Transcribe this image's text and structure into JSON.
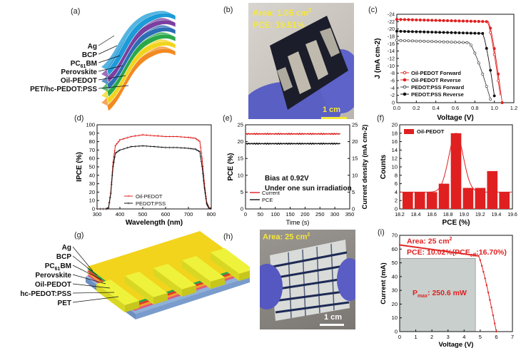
{
  "panels": {
    "a": {
      "label": "(a)",
      "layers": [
        "Ag",
        "BCP",
        "PC61BM",
        "Perovskite",
        "Oil-PEDOT",
        "PET/hc-PEDOT:PSS"
      ],
      "layer_colors": [
        "#1b9bd7",
        "#7b3fa0",
        "#2c6db5",
        "#2aa84a",
        "#f2d41c",
        "#f28a22"
      ]
    },
    "b": {
      "label": "(b)",
      "area": "Area: 1.05 cm",
      "area_sup": "2",
      "pce": "PCE: 19.51%",
      "scale": "1 cm"
    },
    "c": {
      "label": "(c)"
    },
    "d": {
      "label": "(d)"
    },
    "e": {
      "label": "(e)",
      "note1": "Bias at 0.92V",
      "note2": "Under one sun irradiation"
    },
    "f": {
      "label": "(f)"
    },
    "g": {
      "label": "(g)",
      "layers": [
        "Ag",
        "BCP",
        "PC61BM",
        "Perovskite",
        "Oil-PEDOT",
        "hc-PEDOT:PSS",
        "PET"
      ]
    },
    "h": {
      "label": "(h)",
      "area": "Area: 25 cm",
      "area_sup": "2",
      "scale": "1 cm"
    },
    "i": {
      "label": "(i)",
      "area": "Area: 25 cm",
      "area_sup": "2",
      "pce": "PCE: 10.02%(PCE",
      "pce_sub": "eff",
      "pce_tail": ":16.70%)",
      "pmax": "P",
      "pmax_sub": "max",
      "pmax_tail": ": 250.6 mW"
    }
  },
  "chart_data": [
    {
      "id": "c",
      "type": "line",
      "xlabel": "Voltage (V)",
      "ylabel": "J (mA cm-2)",
      "xlim": [
        0.0,
        1.2
      ],
      "ylim": [
        -24,
        0
      ],
      "y_inverted": true,
      "xticks": [
        "0.0",
        "0.2",
        "0.4",
        "0.6",
        "0.8",
        "1.0",
        "1.2"
      ],
      "yticks": [
        "-24",
        "-22",
        "-20",
        "-18",
        "-16",
        "-14",
        "-12",
        "-10",
        "-8",
        "-6",
        "-4",
        "-2",
        "0"
      ],
      "legend": "bottom-left",
      "series": [
        {
          "name": "Oil-PEDOT Forward",
          "color": "#e02020",
          "marker": "open-circle",
          "jsc": 22.6,
          "voc": 1.07,
          "knee": 0.93
        },
        {
          "name": "Oil-PEDOT Reverse",
          "color": "#e02020",
          "marker": "filled-circle",
          "jsc": 22.6,
          "voc": 1.08,
          "knee": 0.94
        },
        {
          "name": "PEDOT:PSS Forward",
          "color": "#444444",
          "marker": "open-circle",
          "jsc": 16.9,
          "voc": 0.97,
          "knee": 0.74
        },
        {
          "name": "PEDOT:PSS Reverse",
          "color": "#111111",
          "marker": "filled-circle",
          "jsc": 19.4,
          "voc": 1.01,
          "knee": 0.88
        }
      ]
    },
    {
      "id": "d",
      "type": "line",
      "xlabel": "Wavelength (nm)",
      "ylabel": "IPCE (%)",
      "xlim": [
        300,
        800
      ],
      "ylim": [
        0,
        100
      ],
      "xticks": [
        "300",
        "400",
        "500",
        "600",
        "700",
        "800"
      ],
      "yticks": [
        "0",
        "10",
        "20",
        "30",
        "40",
        "50",
        "60",
        "70",
        "80",
        "90",
        "100"
      ],
      "legend": "bottom-center",
      "x": [
        300,
        340,
        350,
        360,
        370,
        380,
        400,
        450,
        500,
        550,
        600,
        650,
        700,
        730,
        750,
        760,
        770,
        780,
        790,
        800
      ],
      "series": [
        {
          "name": "Oil-PEDOT",
          "color": "#e02020",
          "values": [
            0,
            0,
            1,
            20,
            55,
            75,
            82,
            86,
            88,
            87,
            86,
            86,
            85,
            84,
            80,
            60,
            30,
            8,
            1,
            0
          ]
        },
        {
          "name": "PEDOT:PSS",
          "color": "#111111",
          "values": [
            0,
            0,
            1,
            18,
            50,
            66,
            70,
            74,
            75,
            74,
            73,
            73,
            72,
            71,
            68,
            50,
            25,
            6,
            1,
            0
          ]
        }
      ]
    },
    {
      "id": "e",
      "type": "line",
      "xlabel": "Time (s)",
      "ylabel": "PCE (%)",
      "ylabel2": "Current density (mA cm-2)",
      "xlim": [
        0,
        350
      ],
      "ylim": [
        0,
        25
      ],
      "xticks": [
        "0",
        "50",
        "100",
        "150",
        "200",
        "250",
        "300",
        "350"
      ],
      "yticks": [
        "0",
        "5",
        "10",
        "15",
        "20",
        "25"
      ],
      "legend": "bottom-left",
      "series": [
        {
          "name": "Current",
          "color": "#e02020",
          "value": 22.3
        },
        {
          "name": "PCE",
          "color": "#111111",
          "value": 19.4
        }
      ]
    },
    {
      "id": "f",
      "type": "bar",
      "xlabel": "PCE (%)",
      "ylabel": "Counts",
      "xlim": [
        18.2,
        19.6
      ],
      "ylim": [
        0,
        20
      ],
      "xticks": [
        "18.2",
        "18.4",
        "18.6",
        "18.8",
        "19.0",
        "19.2",
        "19.4",
        "19.6"
      ],
      "yticks": [
        "0",
        "2",
        "4",
        "6",
        "8",
        "10",
        "12",
        "14",
        "16",
        "18",
        "20"
      ],
      "legend": "top-left",
      "series": [
        {
          "name": "Oil-PEDOT",
          "color": "#e02020"
        }
      ],
      "categories": [
        18.3,
        18.45,
        18.6,
        18.75,
        18.9,
        19.05,
        19.2,
        19.35,
        19.5
      ],
      "values": [
        4,
        4,
        4,
        6,
        18,
        5,
        5,
        9,
        4
      ]
    },
    {
      "id": "i",
      "type": "line",
      "xlabel": "Voltage (V)",
      "ylabel": "Current (mA)",
      "xlim": [
        0,
        7
      ],
      "ylim": [
        0,
        70
      ],
      "xticks": [
        "0",
        "1",
        "2",
        "3",
        "4",
        "5",
        "6",
        "7"
      ],
      "yticks": [
        "0",
        "10",
        "20",
        "30",
        "40",
        "50",
        "60",
        "70"
      ],
      "series": [
        {
          "name": "",
          "color": "#e02020",
          "isc": 63,
          "voc": 6.0,
          "knee": 4.9
        }
      ],
      "pmax_rect": {
        "v": 4.7,
        "i": 53.3
      }
    }
  ]
}
